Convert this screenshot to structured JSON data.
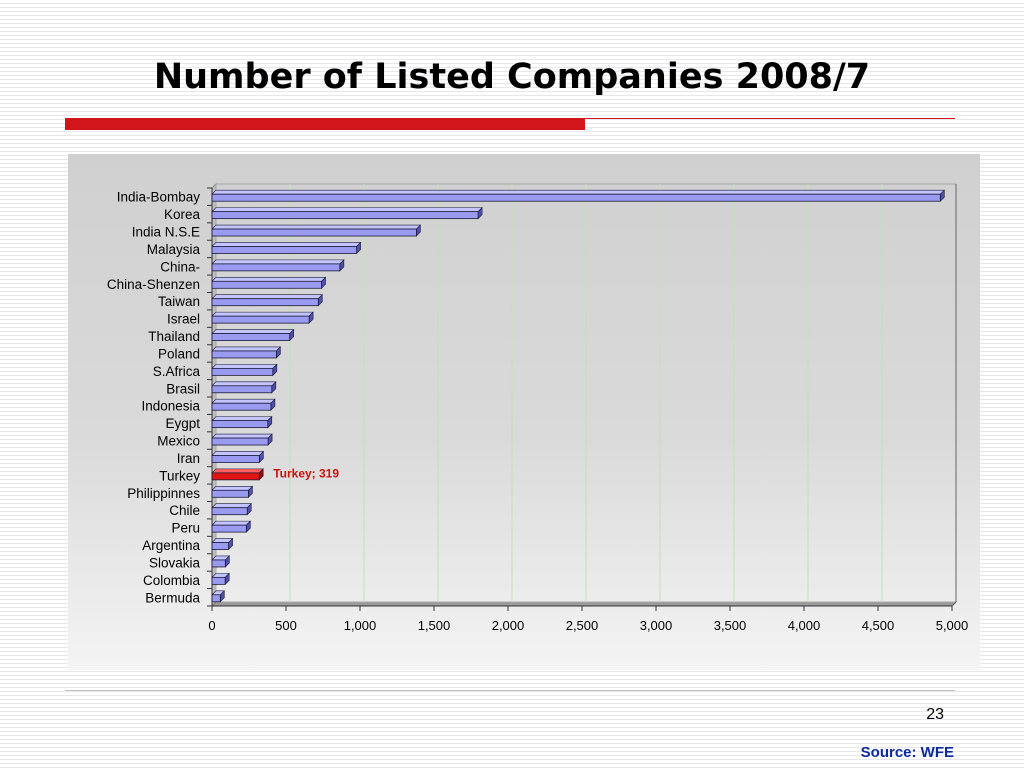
{
  "slide": {
    "title": "Number of Listed Companies 2008/7",
    "page_number": "23",
    "source": "Source: WFE"
  },
  "colors": {
    "bar": "#9a9af0",
    "highlight": "#e01414",
    "accent_rule": "#d2141b",
    "label_highlight": "#d01010",
    "gridline": "#bfe3b0",
    "source_text": "#0c2a9c"
  },
  "chart_data": {
    "type": "bar",
    "orientation": "horizontal",
    "title": "",
    "xlabel": "",
    "ylabel": "",
    "xlim": [
      0,
      5000
    ],
    "x_ticks": [
      0,
      500,
      1000,
      1500,
      2000,
      2500,
      3000,
      3500,
      4000,
      4500,
      5000
    ],
    "x_tick_labels": [
      "0",
      "500",
      "1,000",
      "1,500",
      "2,000",
      "2,500",
      "3,000",
      "3,500",
      "4,000",
      "4,500",
      "5,000"
    ],
    "grid": true,
    "legend": "none",
    "categories": [
      "India-Bombay",
      "Korea",
      "India N.S.E",
      "Malaysia",
      "China-",
      "China-Shenzen",
      "Taiwan",
      "Israel",
      "Thailand",
      "Poland",
      "S.Africa",
      "Brasil",
      "Indonesia",
      "Eygpt",
      "Mexico",
      "Iran",
      "Turkey",
      "Philippinnes",
      "Chile",
      "Peru",
      "Argentina",
      "Slovakia",
      "Colombia",
      "Bermuda"
    ],
    "values": [
      4921,
      1798,
      1381,
      977,
      864,
      740,
      718,
      656,
      525,
      435,
      411,
      404,
      398,
      377,
      379,
      320,
      319,
      246,
      238,
      232,
      112,
      90,
      89,
      56
    ],
    "highlight": {
      "category": "Turkey",
      "label": "Turkey; 319"
    }
  }
}
